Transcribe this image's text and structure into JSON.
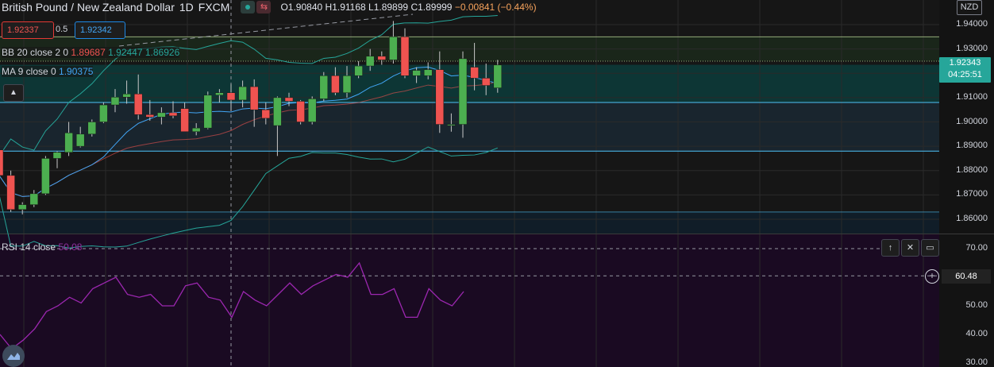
{
  "header": {
    "symbol_name": "British Pound / New Zealand Dollar",
    "interval": "1D",
    "exchange": "FXCM",
    "ohlc_open": "O1.90840",
    "ohlc_high": "H1.91168",
    "ohlc_low": "L1.89899",
    "ohlc_close": "C1.89999",
    "change": "−0.00841 (−0.44%)",
    "status_icon": "circle-icon",
    "flag_icon": "arrows-icon"
  },
  "trade": {
    "sell_price": "1.92337",
    "spread": "0.5",
    "buy_price": "1.92342"
  },
  "indicators": {
    "bb_label": "BB 20 close 2 0",
    "bb_basis": "1.89687",
    "bb_upper": "1.92447",
    "bb_lower": "1.86926",
    "ma_label": "MA 9 close 0",
    "ma_value": "1.90375",
    "collapse_icon": "chevron-up-icon"
  },
  "price_axis": {
    "currency": "NZD",
    "current_price": "1.92343",
    "countdown": "04:25:51",
    "ticks": [
      "1.94000",
      "1.93000",
      "1.92000",
      "1.91000",
      "1.90000",
      "1.89000",
      "1.88000",
      "1.87000",
      "1.86000"
    ]
  },
  "rsi_pane": {
    "label": "RSI 14 close",
    "value_label": "50.08",
    "current_value": "60.48",
    "ticks": [
      "70.00",
      "50.00",
      "40.00",
      "30.00"
    ],
    "buttons": [
      "arrow-up-icon",
      "close-icon",
      "maximize-icon"
    ]
  },
  "colors": {
    "up": "#4caf50",
    "down": "#ef5350",
    "bb_band": "#26a69a",
    "bb_basis": "#ef5350",
    "ma": "#42a5f5",
    "rsi": "#9c27b0",
    "background": "#161616",
    "rsi_bg": "#1a0a22"
  },
  "chart_data": {
    "type": "candlestick",
    "ylim": [
      1.855,
      1.945
    ],
    "candles": [
      {
        "o": 1.8885,
        "h": 1.892,
        "l": 1.876,
        "c": 1.878
      },
      {
        "o": 1.878,
        "h": 1.88,
        "l": 1.863,
        "c": 1.864
      },
      {
        "o": 1.864,
        "h": 1.867,
        "l": 1.862,
        "c": 1.866
      },
      {
        "o": 1.866,
        "h": 1.872,
        "l": 1.865,
        "c": 1.8705
      },
      {
        "o": 1.8705,
        "h": 1.886,
        "l": 1.87,
        "c": 1.885
      },
      {
        "o": 1.885,
        "h": 1.888,
        "l": 1.881,
        "c": 1.8875
      },
      {
        "o": 1.8875,
        "h": 1.9,
        "l": 1.886,
        "c": 1.8955
      },
      {
        "o": 1.89,
        "h": 1.898,
        "l": 1.8895,
        "c": 1.895
      },
      {
        "o": 1.895,
        "h": 1.901,
        "l": 1.894,
        "c": 1.9
      },
      {
        "o": 1.9,
        "h": 1.908,
        "l": 1.8995,
        "c": 1.907
      },
      {
        "o": 1.907,
        "h": 1.9135,
        "l": 1.904,
        "c": 1.9102
      },
      {
        "o": 1.9102,
        "h": 1.917,
        "l": 1.9075,
        "c": 1.9115
      },
      {
        "o": 1.9115,
        "h": 1.9195,
        "l": 1.901,
        "c": 1.903
      },
      {
        "o": 1.903,
        "h": 1.909,
        "l": 1.9005,
        "c": 1.902
      },
      {
        "o": 1.902,
        "h": 1.906,
        "l": 1.899,
        "c": 1.9038
      },
      {
        "o": 1.9038,
        "h": 1.9085,
        "l": 1.9015,
        "c": 1.9025
      },
      {
        "o": 1.9055,
        "h": 1.908,
        "l": 1.896,
        "c": 1.896
      },
      {
        "o": 1.896,
        "h": 1.8995,
        "l": 1.8945,
        "c": 1.8975
      },
      {
        "o": 1.8975,
        "h": 1.9125,
        "l": 1.897,
        "c": 1.911
      },
      {
        "o": 1.911,
        "h": 1.9135,
        "l": 1.908,
        "c": 1.912
      },
      {
        "o": 1.912,
        "h": 1.9155,
        "l": 1.9045,
        "c": 1.909
      },
      {
        "o": 1.909,
        "h": 1.917,
        "l": 1.906,
        "c": 1.9145
      },
      {
        "o": 1.9145,
        "h": 1.9175,
        "l": 1.898,
        "c": 1.905
      },
      {
        "o": 1.905,
        "h": 1.908,
        "l": 1.899,
        "c": 1.9015
      },
      {
        "o": 1.8985,
        "h": 1.9105,
        "l": 1.886,
        "c": 1.91
      },
      {
        "o": 1.91,
        "h": 1.912,
        "l": 1.9065,
        "c": 1.9085
      },
      {
        "o": 1.9085,
        "h": 1.909,
        "l": 1.899,
        "c": 1.9
      },
      {
        "o": 1.9,
        "h": 1.9105,
        "l": 1.899,
        "c": 1.9095
      },
      {
        "o": 1.9095,
        "h": 1.9205,
        "l": 1.9085,
        "c": 1.919
      },
      {
        "o": 1.919,
        "h": 1.9225,
        "l": 1.911,
        "c": 1.912
      },
      {
        "o": 1.912,
        "h": 1.923,
        "l": 1.91,
        "c": 1.919
      },
      {
        "o": 1.919,
        "h": 1.925,
        "l": 1.918,
        "c": 1.923
      },
      {
        "o": 1.923,
        "h": 1.93,
        "l": 1.921,
        "c": 1.927
      },
      {
        "o": 1.927,
        "h": 1.929,
        "l": 1.9235,
        "c": 1.9255
      },
      {
        "o": 1.9255,
        "h": 1.9415,
        "l": 1.924,
        "c": 1.935
      },
      {
        "o": 1.935,
        "h": 1.9385,
        "l": 1.918,
        "c": 1.919
      },
      {
        "o": 1.919,
        "h": 1.9225,
        "l": 1.916,
        "c": 1.9212
      },
      {
        "o": 1.919,
        "h": 1.9245,
        "l": 1.9175,
        "c": 1.9215
      },
      {
        "o": 1.9215,
        "h": 1.929,
        "l": 1.8955,
        "c": 1.899
      },
      {
        "o": 1.899,
        "h": 1.9035,
        "l": 1.896,
        "c": 1.899
      },
      {
        "o": 1.899,
        "h": 1.929,
        "l": 1.8935,
        "c": 1.926
      },
      {
        "o": 1.9225,
        "h": 1.9325,
        "l": 1.913,
        "c": 1.918
      },
      {
        "o": 1.918,
        "h": 1.924,
        "l": 1.911,
        "c": 1.915
      },
      {
        "o": 1.914,
        "h": 1.9255,
        "l": 1.912,
        "c": 1.9234
      }
    ],
    "rsi": [
      40,
      35,
      38,
      42,
      48,
      50,
      53,
      51,
      56,
      58,
      60,
      54,
      53,
      54,
      50,
      50,
      57,
      58,
      53,
      52,
      46,
      55,
      52,
      50,
      54,
      58,
      54,
      57,
      59,
      61,
      60,
      65,
      54,
      54,
      56,
      46,
      46,
      56,
      52,
      50,
      55
    ]
  }
}
